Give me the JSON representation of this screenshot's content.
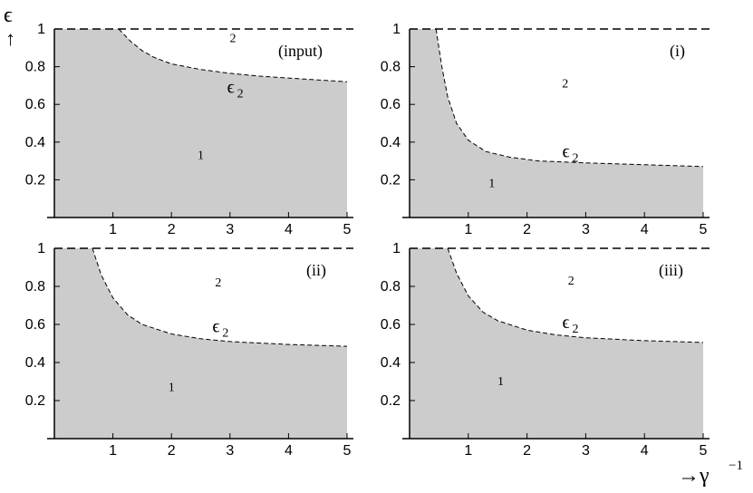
{
  "axis": {
    "y_symbol": "ϵ",
    "y_arrow": "↑",
    "x_title": "→γ",
    "x_title_sup": "−1"
  },
  "chart_data": [
    {
      "type": "area",
      "label": "(input)",
      "curve_label": "ϵ",
      "curve_sub": "2",
      "region_labels": [
        "1",
        "2"
      ],
      "x_ticks": [
        "1",
        "2",
        "3",
        "4",
        "5"
      ],
      "y_ticks": [
        "0.2",
        "0.4",
        "0.6",
        "0.8",
        "1"
      ],
      "xlim": [
        0,
        5.05
      ],
      "ylim": [
        0,
        1.0
      ],
      "boundary": {
        "x": [
          0,
          1.1,
          1.3,
          1.5,
          1.7,
          2.0,
          2.5,
          3.0,
          3.5,
          4.0,
          4.5,
          5.0
        ],
        "y": [
          1,
          1,
          0.935,
          0.885,
          0.85,
          0.815,
          0.785,
          0.765,
          0.75,
          0.74,
          0.73,
          0.72
        ]
      },
      "dashed_line_y": 1
    },
    {
      "type": "area",
      "label": "(i)",
      "curve_label": "ϵ",
      "curve_sub": "2",
      "region_labels": [
        "1",
        "2"
      ],
      "x_ticks": [
        "1",
        "2",
        "3",
        "4",
        "5"
      ],
      "y_ticks": [
        "0.2",
        "0.4",
        "0.6",
        "0.8",
        "1"
      ],
      "xlim": [
        0,
        5.05
      ],
      "ylim": [
        0,
        1.0
      ],
      "boundary": {
        "x": [
          0,
          0.45,
          0.55,
          0.65,
          0.8,
          1.0,
          1.3,
          1.7,
          2.2,
          3.0,
          4.0,
          5.0
        ],
        "y": [
          1,
          1,
          0.8,
          0.64,
          0.5,
          0.41,
          0.35,
          0.32,
          0.3,
          0.29,
          0.28,
          0.27
        ]
      },
      "dashed_line_y": 1
    },
    {
      "type": "area",
      "label": "(ii)",
      "curve_label": "ϵ",
      "curve_sub": "2",
      "region_labels": [
        "1",
        "2"
      ],
      "x_ticks": [
        "1",
        "2",
        "3",
        "4",
        "5"
      ],
      "y_ticks": [
        "0.2",
        "0.4",
        "0.6",
        "0.8",
        "1"
      ],
      "xlim": [
        0,
        5.05
      ],
      "ylim": [
        0,
        1.0
      ],
      "boundary": {
        "x": [
          0,
          0.65,
          0.8,
          1.0,
          1.25,
          1.5,
          2.0,
          2.5,
          3.0,
          4.0,
          5.0
        ],
        "y": [
          1,
          1,
          0.86,
          0.74,
          0.65,
          0.6,
          0.55,
          0.525,
          0.51,
          0.495,
          0.485
        ]
      },
      "dashed_line_y": 1
    },
    {
      "type": "area",
      "label": "(iii)",
      "curve_label": "ϵ",
      "curve_sub": "2",
      "region_labels": [
        "1",
        "2"
      ],
      "x_ticks": [
        "1",
        "2",
        "3",
        "4",
        "5"
      ],
      "y_ticks": [
        "0.2",
        "0.4",
        "0.6",
        "0.8",
        "1"
      ],
      "xlim": [
        0,
        5.05
      ],
      "ylim": [
        0,
        1.0
      ],
      "boundary": {
        "x": [
          0,
          0.65,
          0.8,
          1.0,
          1.25,
          1.5,
          2.0,
          2.5,
          3.0,
          4.0,
          5.0
        ],
        "y": [
          1,
          1,
          0.87,
          0.75,
          0.665,
          0.62,
          0.57,
          0.545,
          0.53,
          0.515,
          0.505
        ]
      },
      "dashed_line_y": 1
    }
  ]
}
